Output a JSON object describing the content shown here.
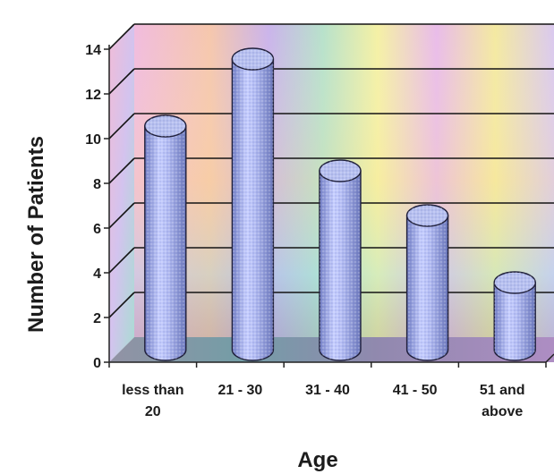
{
  "chart_data": {
    "type": "bar",
    "style": "3d-cylinder",
    "categories": [
      "less than\n20",
      "21 - 30",
      "31 - 40",
      "41 - 50",
      "51 and\nabove"
    ],
    "values": [
      10,
      13,
      8,
      6,
      3
    ],
    "xlabel": "Age",
    "ylabel": "Number of Patients",
    "ylim": [
      0,
      14
    ],
    "yticks": [
      0,
      2,
      4,
      6,
      8,
      10,
      12,
      14
    ],
    "grid": true,
    "legend": "none",
    "colors": {
      "bar": "#a9b4ec",
      "bar_dark": "#6f7bc0",
      "bar_top": "#b7c0f0",
      "gridline": "#141414"
    }
  }
}
